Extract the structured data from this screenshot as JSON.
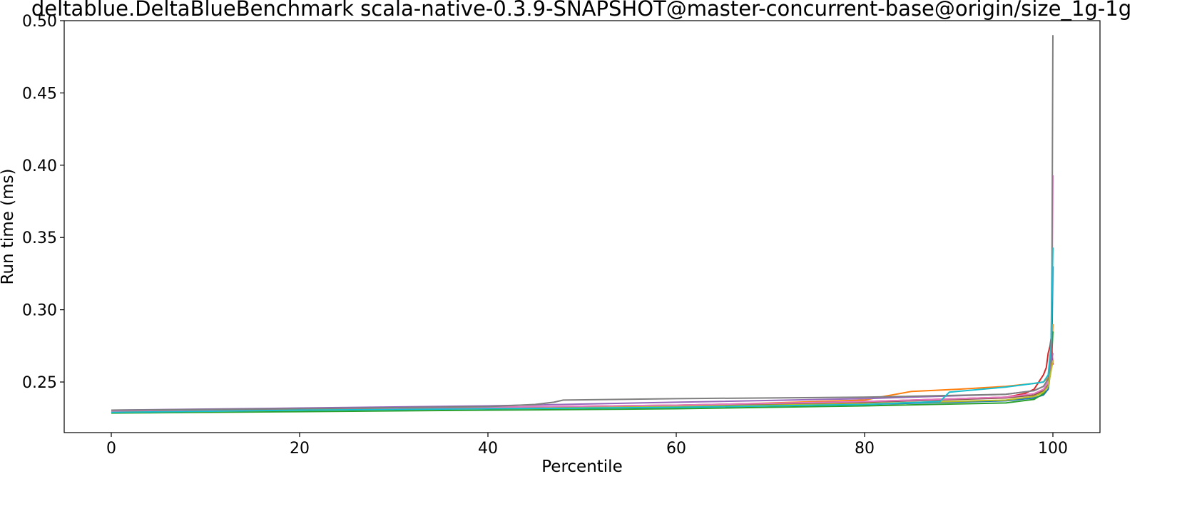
{
  "chart_data": {
    "type": "line",
    "title": "deltablue.DeltaBlueBenchmark scala-native-0.3.9-SNAPSHOT@master-concurrent-base@origin/size_1g-1g",
    "xlabel": "Percentile",
    "ylabel": "Run time (ms)",
    "xlim": [
      -5,
      105
    ],
    "ylim": [
      0.215,
      0.5
    ],
    "xticks": [
      0,
      20,
      40,
      60,
      80,
      100
    ],
    "yticks": [
      0.25,
      0.3,
      0.35,
      0.4,
      0.45,
      0.5
    ],
    "xtick_labels": [
      "0",
      "20",
      "40",
      "60",
      "80",
      "100"
    ],
    "ytick_labels": [
      "0.25",
      "0.30",
      "0.35",
      "0.40",
      "0.45",
      "0.50"
    ],
    "grid": false,
    "legend": "none",
    "series": [
      {
        "color": "#1f77b4",
        "x": [
          0,
          20,
          40,
          60,
          80,
          95,
          98,
          99,
          99.5,
          99.8,
          99.9,
          100
        ],
        "y": [
          0.229,
          0.2305,
          0.2315,
          0.2325,
          0.2345,
          0.237,
          0.239,
          0.241,
          0.245,
          0.26,
          0.28,
          0.33
        ]
      },
      {
        "color": "#ff7f0e",
        "x": [
          0,
          20,
          40,
          60,
          80,
          82,
          85,
          90,
          95,
          98,
          99,
          99.5,
          99.8,
          100
        ],
        "y": [
          0.2295,
          0.231,
          0.232,
          0.2335,
          0.2375,
          0.24,
          0.2435,
          0.245,
          0.247,
          0.249,
          0.25,
          0.253,
          0.26,
          0.29
        ]
      },
      {
        "color": "#2ca02c",
        "x": [
          0,
          20,
          40,
          60,
          80,
          95,
          98,
          99,
          99.5,
          99.8,
          100
        ],
        "y": [
          0.2285,
          0.2295,
          0.2305,
          0.2315,
          0.2335,
          0.2355,
          0.238,
          0.242,
          0.248,
          0.258,
          0.285
        ]
      },
      {
        "color": "#d62728",
        "x": [
          0,
          20,
          40,
          60,
          80,
          95,
          97,
          98,
          98.5,
          99,
          99.3,
          99.5,
          99.7,
          99.8,
          100
        ],
        "y": [
          0.2295,
          0.231,
          0.2325,
          0.234,
          0.2365,
          0.2395,
          0.242,
          0.245,
          0.25,
          0.255,
          0.26,
          0.27,
          0.275,
          0.28,
          0.262
        ]
      },
      {
        "color": "#9467bd",
        "x": [
          0,
          20,
          40,
          60,
          80,
          95,
          98,
          99,
          99.5,
          100
        ],
        "y": [
          0.2305,
          0.232,
          0.2335,
          0.236,
          0.2385,
          0.2415,
          0.244,
          0.247,
          0.252,
          0.27
        ]
      },
      {
        "color": "#8c564b",
        "x": [
          0,
          20,
          40,
          60,
          80,
          95,
          98,
          99,
          99.5,
          100
        ],
        "y": [
          0.2295,
          0.231,
          0.232,
          0.2335,
          0.236,
          0.239,
          0.241,
          0.244,
          0.248,
          0.265
        ]
      },
      {
        "color": "#e377c2",
        "x": [
          0,
          20,
          40,
          60,
          80,
          95,
          98,
          99,
          99.5,
          99.8,
          99.9,
          100
        ],
        "y": [
          0.23,
          0.2315,
          0.2325,
          0.234,
          0.2365,
          0.2395,
          0.242,
          0.245,
          0.25,
          0.27,
          0.31,
          0.393
        ]
      },
      {
        "color": "#7f7f7f",
        "x": [
          0,
          20,
          40,
          45,
          47,
          48,
          60,
          80,
          95,
          98,
          99,
          99.5,
          99.8,
          99.9,
          100
        ],
        "y": [
          0.2305,
          0.2315,
          0.233,
          0.2345,
          0.236,
          0.2375,
          0.2385,
          0.2395,
          0.2415,
          0.244,
          0.247,
          0.252,
          0.27,
          0.33,
          0.49
        ]
      },
      {
        "color": "#bcbd22",
        "x": [
          0,
          20,
          40,
          60,
          80,
          95,
          98,
          99,
          99.5,
          100
        ],
        "y": [
          0.229,
          0.2305,
          0.2315,
          0.233,
          0.235,
          0.2375,
          0.24,
          0.243,
          0.247,
          0.265
        ]
      },
      {
        "color": "#17becf",
        "x": [
          0,
          20,
          40,
          60,
          80,
          88,
          89,
          95,
          98,
          99,
          99.5,
          99.8,
          100
        ],
        "y": [
          0.229,
          0.2305,
          0.2315,
          0.2325,
          0.2345,
          0.2365,
          0.243,
          0.2465,
          0.249,
          0.25,
          0.255,
          0.275,
          0.343
        ]
      }
    ]
  }
}
